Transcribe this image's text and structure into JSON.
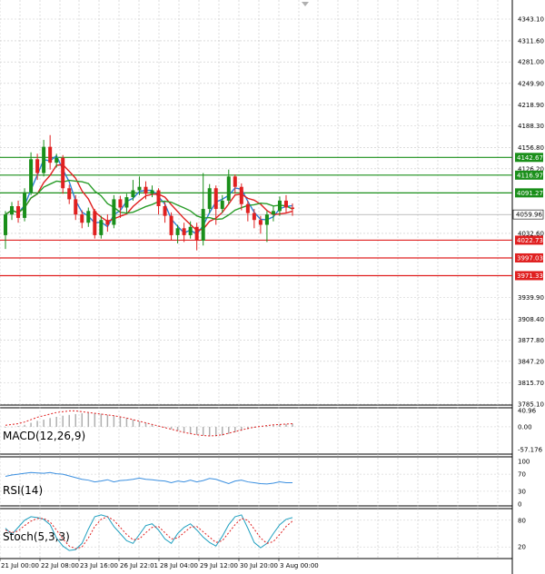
{
  "chart_data": {
    "type": "candlestick",
    "main": {
      "y_ticks": [
        "4343.10",
        "4311.60",
        "4281.00",
        "4249.90",
        "4218.90",
        "4188.30",
        "4156.80",
        "4126.20",
        "4032.60",
        "3939.90",
        "3908.40",
        "3877.80",
        "3847.20",
        "3815.70",
        "3785.10"
      ],
      "levels": [
        {
          "label": "4142.67",
          "value": 4142.67,
          "color": "#1a8f1a"
        },
        {
          "label": "4116.97",
          "value": 4116.97,
          "color": "#1a8f1a"
        },
        {
          "label": "4091.27",
          "value": 4091.27,
          "color": "#1a8f1a"
        },
        {
          "label": "4022.73",
          "value": 4022.73,
          "color": "#e02020"
        },
        {
          "label": "3997.03",
          "value": 3997.03,
          "color": "#e02020"
        },
        {
          "label": "3971.33",
          "value": 3971.33,
          "color": "#e02020"
        }
      ],
      "current_price": {
        "label": "4059.96",
        "value": 4059.96
      },
      "candles": [
        [
          4030,
          4060,
          4010,
          4065
        ],
        [
          4060,
          4072,
          4052,
          4078
        ],
        [
          4072,
          4055,
          4048,
          4080
        ],
        [
          4055,
          4092,
          4050,
          4098
        ],
        [
          4092,
          4140,
          4088,
          4150
        ],
        [
          4140,
          4120,
          4110,
          4148
        ],
        [
          4120,
          4158,
          4115,
          4168
        ],
        [
          4158,
          4135,
          4125,
          4175
        ],
        [
          4135,
          4142,
          4128,
          4148
        ],
        [
          4142,
          4098,
          4090,
          4146
        ],
        [
          4098,
          4082,
          4075,
          4103
        ],
        [
          4082,
          4060,
          4052,
          4088
        ],
        [
          4060,
          4048,
          4040,
          4066
        ],
        [
          4048,
          4065,
          4042,
          4070
        ],
        [
          4065,
          4030,
          4025,
          4068
        ],
        [
          4030,
          4052,
          4025,
          4058
        ],
        [
          4052,
          4045,
          4035,
          4060
        ],
        [
          4045,
          4082,
          4040,
          4088
        ],
        [
          4082,
          4070,
          4055,
          4087
        ],
        [
          4070,
          4085,
          4062,
          4090
        ],
        [
          4085,
          4095,
          4080,
          4110
        ],
        [
          4095,
          4100,
          4088,
          4115
        ],
        [
          4100,
          4090,
          4082,
          4108
        ],
        [
          4090,
          4095,
          4085,
          4102
        ],
        [
          4095,
          4072,
          4060,
          4098
        ],
        [
          4072,
          4058,
          4048,
          4078
        ],
        [
          4058,
          4030,
          4022,
          4063
        ],
        [
          4030,
          4040,
          4018,
          4045
        ],
        [
          4040,
          4030,
          4020,
          4048
        ],
        [
          4030,
          4042,
          4025,
          4050
        ],
        [
          4042,
          4022,
          4008,
          4048
        ],
        [
          4022,
          4068,
          4015,
          4120
        ],
        [
          4068,
          4098,
          4062,
          4104
        ],
        [
          4098,
          4068,
          4045,
          4102
        ],
        [
          4068,
          4080,
          4062,
          4088
        ],
        [
          4080,
          4115,
          4075,
          4125
        ],
        [
          4115,
          4100,
          4090,
          4118
        ],
        [
          4100,
          4075,
          4066,
          4105
        ],
        [
          4075,
          4062,
          4050,
          4080
        ],
        [
          4062,
          4052,
          4040,
          4068
        ],
        [
          4052,
          4045,
          4032,
          4058
        ],
        [
          4045,
          4060,
          4020,
          4065
        ],
        [
          4060,
          4065,
          4050,
          4072
        ],
        [
          4065,
          4080,
          4058,
          4086
        ],
        [
          4080,
          4070,
          4062,
          4088
        ],
        [
          4070,
          4068,
          4058,
          4076
        ]
      ],
      "x_ticks": [
        "21 Jul 00:00",
        "22 Jul 08:00",
        "23 Jul 16:00",
        "26 Jul 22:01",
        "28 Jul 04:00",
        "29 Jul 12:00",
        "30 Jul 20:00",
        "3 Aug 00:00"
      ]
    },
    "macd": {
      "label": "MACD(12,26,9)",
      "y_ticks": [
        "40.96",
        "0.00",
        "-57.176"
      ],
      "histogram": [
        -2,
        -1,
        2,
        5,
        10,
        15,
        18,
        22,
        25,
        28,
        30,
        32,
        34,
        35,
        34,
        33,
        30,
        28,
        25,
        22,
        18,
        14,
        10,
        6,
        2,
        -2,
        -6,
        -10,
        -14,
        -17,
        -20,
        -22,
        -24,
        -24,
        -22,
        -18,
        -14,
        -10,
        -6,
        -2,
        0,
        2,
        4,
        6,
        7,
        8
      ],
      "signal": [
        4,
        6,
        8,
        12,
        18,
        24,
        28,
        32,
        36,
        38,
        40,
        40,
        38,
        36,
        34,
        32,
        30,
        28,
        25,
        22,
        18,
        14,
        10,
        6,
        2,
        -2,
        -6,
        -10,
        -14,
        -17,
        -20,
        -22,
        -23,
        -22,
        -20,
        -16,
        -12,
        -8,
        -4,
        -1,
        1,
        3,
        5,
        6,
        7,
        8
      ]
    },
    "rsi": {
      "label": "RSI(14)",
      "y_ticks": [
        "100",
        "70",
        "30",
        "0"
      ],
      "values": [
        65,
        68,
        70,
        72,
        74,
        73,
        72,
        74,
        71,
        70,
        66,
        62,
        58,
        56,
        52,
        54,
        57,
        52,
        55,
        56,
        58,
        61,
        58,
        57,
        55,
        54,
        50,
        54,
        52,
        56,
        52,
        55,
        60,
        58,
        53,
        48,
        54,
        56,
        52,
        50,
        48,
        47,
        49,
        52,
        50,
        50
      ]
    },
    "stoch": {
      "label": "Stoch(5,3,3)",
      "y_ticks": [
        "80",
        "20"
      ],
      "k": [
        62,
        48,
        64,
        80,
        88,
        86,
        82,
        70,
        40,
        22,
        12,
        14,
        28,
        60,
        88,
        92,
        88,
        66,
        50,
        34,
        28,
        48,
        68,
        72,
        58,
        38,
        28,
        50,
        64,
        72,
        58,
        42,
        30,
        22,
        44,
        70,
        88,
        92,
        62,
        30,
        18,
        28,
        50,
        70,
        82,
        86
      ],
      "d": [
        58,
        52,
        56,
        68,
        78,
        84,
        84,
        76,
        58,
        38,
        22,
        16,
        20,
        40,
        66,
        82,
        88,
        80,
        64,
        48,
        36,
        38,
        52,
        64,
        66,
        52,
        38,
        40,
        52,
        64,
        66,
        54,
        42,
        30,
        34,
        52,
        70,
        84,
        80,
        60,
        40,
        28,
        32,
        48,
        66,
        78
      ]
    }
  },
  "colors": {
    "bull": "#1a8f1a",
    "bear": "#e02020",
    "ma_fast": "#2c7fd6",
    "ma_mid": "#2a9d2a",
    "ma_slow": "#e02020",
    "rsi_line": "#3a8fe0",
    "grid": "#c8c8c8",
    "current": "#222222"
  }
}
